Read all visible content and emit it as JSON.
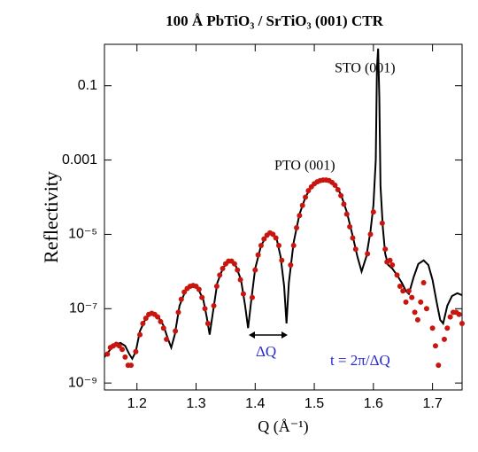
{
  "chart_data": {
    "type": "line",
    "title": "100 Å PbTiO₃ / SrTiO₃ (001) CTR",
    "x_label": "Q  (Å⁻¹)",
    "y_label": "Reflectivity",
    "annotations": [
      "STO (001)",
      "PTO (001)",
      "ΔQ",
      "t = 2π/ΔQ"
    ],
    "ylog": true,
    "xlim": [
      1.145,
      1.75
    ],
    "ylim": [
      6.5e-10,
      1.3
    ],
    "xticks": [
      1.2,
      1.3,
      1.4,
      1.5,
      1.6,
      1.7
    ],
    "yticks": [
      0.1,
      0.001,
      {
        "value": 1e-05,
        "label": "10⁻⁵"
      },
      {
        "value": 1e-07,
        "label": "10⁻⁷"
      },
      {
        "value": 1e-09,
        "label": "10⁻⁹"
      }
    ],
    "series": [
      {
        "style": "line",
        "color": "#000000",
        "x": [
          1.145,
          1.155,
          1.165,
          1.172,
          1.18,
          1.187,
          1.192,
          1.198,
          1.205,
          1.215,
          1.225,
          1.235,
          1.245,
          1.252,
          1.258,
          1.264,
          1.272,
          1.282,
          1.292,
          1.302,
          1.312,
          1.318,
          1.323,
          1.328,
          1.336,
          1.346,
          1.356,
          1.366,
          1.376,
          1.383,
          1.388,
          1.393,
          1.4,
          1.41,
          1.42,
          1.428,
          1.436,
          1.443,
          1.449,
          1.453,
          1.457,
          1.465,
          1.475,
          1.485,
          1.495,
          1.505,
          1.515,
          1.525,
          1.535,
          1.545,
          1.555,
          1.565,
          1.573,
          1.58,
          1.588,
          1.595,
          1.6,
          1.604,
          1.606,
          1.608,
          1.61,
          1.612,
          1.616,
          1.62,
          1.625,
          1.632,
          1.64,
          1.648,
          1.655,
          1.66,
          1.668,
          1.676,
          1.685,
          1.693,
          1.7,
          1.707,
          1.713,
          1.718,
          1.725,
          1.733,
          1.742,
          1.75
        ],
        "values": [
          5e-09,
          8e-09,
          1.1e-08,
          1.2e-08,
          1e-08,
          6e-09,
          4.5e-09,
          7e-09,
          2.5e-08,
          5.5e-08,
          7.5e-08,
          6.5e-08,
          3.5e-08,
          1.6e-08,
          9e-09,
          2e-08,
          1.2e-07,
          3e-07,
          4.2e-07,
          3.8e-07,
          1.8e-07,
          6e-08,
          2e-08,
          7e-08,
          5e-07,
          1.3e-06,
          1.9e-06,
          1.6e-06,
          6e-07,
          1.2e-07,
          3e-08,
          1.5e-07,
          1.2e-06,
          5e-06,
          9.5e-06,
          1.1e-05,
          8e-06,
          2.5e-06,
          4e-07,
          4e-08,
          5e-07,
          6e-06,
          3.5e-05,
          0.0001,
          0.00019,
          0.00026,
          0.00029,
          0.00028,
          0.00022,
          0.00012,
          4e-05,
          9e-06,
          2.5e-06,
          1e-06,
          2.5e-06,
          1.2e-05,
          6e-05,
          0.001,
          0.3,
          1.0,
          0.05,
          0.0002,
          1.5e-05,
          3e-06,
          1.5e-06,
          1.2e-06,
          8e-07,
          5e-07,
          3e-07,
          2.5e-07,
          7e-07,
          1.6e-06,
          2e-06,
          1.5e-06,
          6e-07,
          1.5e-07,
          5e-08,
          4e-08,
          1.2e-07,
          2.2e-07,
          2.6e-07,
          2.3e-07
        ]
      },
      {
        "style": "markers",
        "color": "#c8160e",
        "x": [
          1.15,
          1.155,
          1.16,
          1.165,
          1.17,
          1.175,
          1.18,
          1.185,
          1.19,
          1.198,
          1.205,
          1.21,
          1.215,
          1.22,
          1.225,
          1.23,
          1.235,
          1.24,
          1.245,
          1.25,
          1.265,
          1.27,
          1.275,
          1.28,
          1.285,
          1.29,
          1.295,
          1.3,
          1.305,
          1.31,
          1.315,
          1.32,
          1.33,
          1.335,
          1.34,
          1.345,
          1.35,
          1.355,
          1.36,
          1.365,
          1.37,
          1.375,
          1.38,
          1.395,
          1.4,
          1.405,
          1.41,
          1.415,
          1.42,
          1.425,
          1.43,
          1.435,
          1.44,
          1.445,
          1.46,
          1.465,
          1.47,
          1.475,
          1.48,
          1.485,
          1.49,
          1.495,
          1.5,
          1.505,
          1.51,
          1.515,
          1.52,
          1.525,
          1.53,
          1.535,
          1.54,
          1.545,
          1.55,
          1.555,
          1.56,
          1.565,
          1.57,
          1.59,
          1.595,
          1.6,
          1.615,
          1.62,
          1.623,
          1.628,
          1.632,
          1.64,
          1.645,
          1.65,
          1.655,
          1.66,
          1.665,
          1.67,
          1.675,
          1.68,
          1.685,
          1.69,
          1.7,
          1.705,
          1.71,
          1.72,
          1.725,
          1.73,
          1.735,
          1.74,
          1.745,
          1.75
        ],
        "values": [
          6e-09,
          9e-09,
          1e-08,
          1.1e-08,
          1e-08,
          8e-09,
          5e-09,
          3e-09,
          3e-09,
          7e-09,
          2e-08,
          4e-08,
          5.5e-08,
          7e-08,
          7.5e-08,
          7e-08,
          6e-08,
          4.5e-08,
          3e-08,
          1.5e-08,
          2.5e-08,
          8e-08,
          1.8e-07,
          2.8e-07,
          3.5e-07,
          4e-07,
          4.2e-07,
          4e-07,
          3.3e-07,
          2e-07,
          1e-07,
          4e-08,
          1.2e-07,
          4e-07,
          8e-07,
          1.2e-06,
          1.6e-06,
          1.9e-06,
          1.9e-06,
          1.6e-06,
          1.1e-06,
          6e-07,
          2.5e-07,
          2e-07,
          1.1e-06,
          2.8e-06,
          5e-06,
          7.5e-06,
          9.5e-06,
          1.1e-05,
          1e-05,
          8e-06,
          5e-06,
          2e-06,
          1.5e-06,
          5e-06,
          1.5e-05,
          3.2e-05,
          6e-05,
          0.0001,
          0.00015,
          0.00019,
          0.00023,
          0.00026,
          0.00028,
          0.00029,
          0.00029,
          0.00028,
          0.00025,
          0.00021,
          0.00016,
          0.00011,
          6.5e-05,
          3.5e-05,
          1.6e-05,
          8e-06,
          4e-06,
          3e-06,
          1e-05,
          4e-05,
          2e-05,
          4e-06,
          1.8e-06,
          2e-06,
          1.5e-06,
          8e-07,
          4e-07,
          3e-07,
          1.5e-07,
          3e-07,
          2e-07,
          8e-08,
          5e-08,
          1.5e-07,
          5e-07,
          1e-07,
          3e-08,
          1e-08,
          3e-09,
          1.5e-08,
          3e-08,
          6e-08,
          8e-08,
          8e-08,
          7e-08,
          4e-08
        ]
      }
    ]
  }
}
